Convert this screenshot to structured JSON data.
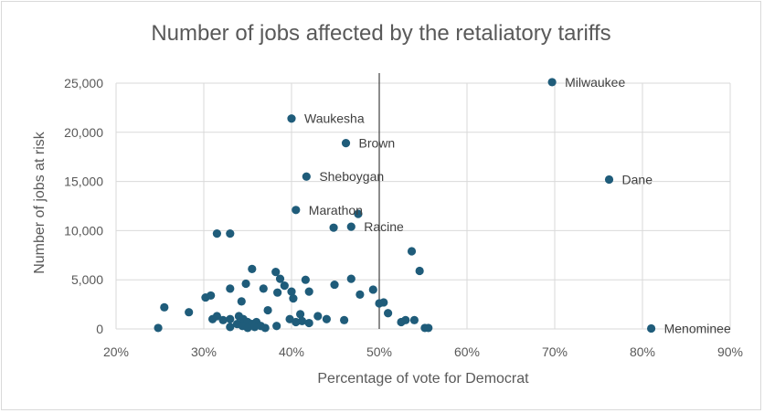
{
  "chart_data": {
    "type": "scatter",
    "title": "Number of jobs affected by the retaliatory tariffs",
    "xlabel": "Percentage of vote for Democrat",
    "ylabel": "Number of jobs at risk",
    "xlim": [
      0.2,
      0.9
    ],
    "ylim": [
      0,
      25000
    ],
    "x_ticks": [
      0.2,
      0.3,
      0.4,
      0.5,
      0.6,
      0.7,
      0.8,
      0.9
    ],
    "x_tick_labels": [
      "20%",
      "30%",
      "40%",
      "50%",
      "60%",
      "70%",
      "80%",
      "90%"
    ],
    "y_ticks": [
      0,
      5000,
      10000,
      15000,
      20000,
      25000
    ],
    "y_tick_labels": [
      "0",
      "5,000",
      "10,000",
      "15,000",
      "20,000",
      "25,000"
    ],
    "grid": true,
    "reference_line_x": 0.5,
    "marker_color": "#1f5c7a",
    "labels": [
      {
        "text": "Milwaukee",
        "x": 0.697,
        "y": 25100
      },
      {
        "text": "Waukesha",
        "x": 0.4,
        "y": 21400
      },
      {
        "text": "Brown",
        "x": 0.462,
        "y": 18900
      },
      {
        "text": "Sheboygan",
        "x": 0.417,
        "y": 15500
      },
      {
        "text": "Dane",
        "x": 0.762,
        "y": 15200
      },
      {
        "text": "Marathon",
        "x": 0.405,
        "y": 12100
      },
      {
        "text": "Racine",
        "x": 0.468,
        "y": 10400
      },
      {
        "text": "Menominee",
        "x": 0.81,
        "y": 50
      }
    ],
    "points": [
      [
        0.697,
        25100
      ],
      [
        0.4,
        21400
      ],
      [
        0.462,
        18900
      ],
      [
        0.417,
        15500
      ],
      [
        0.762,
        15200
      ],
      [
        0.405,
        12100
      ],
      [
        0.476,
        11700
      ],
      [
        0.468,
        10400
      ],
      [
        0.448,
        10300
      ],
      [
        0.315,
        9700
      ],
      [
        0.33,
        9700
      ],
      [
        0.537,
        7900
      ],
      [
        0.81,
        50
      ],
      [
        0.355,
        6100
      ],
      [
        0.382,
        5800
      ],
      [
        0.387,
        5100
      ],
      [
        0.416,
        5000
      ],
      [
        0.468,
        5100
      ],
      [
        0.546,
        5900
      ],
      [
        0.348,
        4600
      ],
      [
        0.33,
        4100
      ],
      [
        0.368,
        4100
      ],
      [
        0.392,
        4400
      ],
      [
        0.449,
        4500
      ],
      [
        0.493,
        4000
      ],
      [
        0.384,
        3700
      ],
      [
        0.4,
        3800
      ],
      [
        0.42,
        3800
      ],
      [
        0.478,
        3500
      ],
      [
        0.302,
        3200
      ],
      [
        0.308,
        3400
      ],
      [
        0.402,
        3100
      ],
      [
        0.5,
        2600
      ],
      [
        0.505,
        2700
      ],
      [
        0.255,
        2200
      ],
      [
        0.343,
        2800
      ],
      [
        0.283,
        1700
      ],
      [
        0.373,
        1900
      ],
      [
        0.41,
        1500
      ],
      [
        0.43,
        1300
      ],
      [
        0.44,
        1000
      ],
      [
        0.51,
        1600
      ],
      [
        0.53,
        900
      ],
      [
        0.54,
        900
      ],
      [
        0.46,
        900
      ],
      [
        0.31,
        1000
      ],
      [
        0.315,
        1300
      ],
      [
        0.322,
        900
      ],
      [
        0.33,
        1000
      ],
      [
        0.34,
        1300
      ],
      [
        0.345,
        1000
      ],
      [
        0.35,
        700
      ],
      [
        0.355,
        500
      ],
      [
        0.36,
        700
      ],
      [
        0.365,
        300
      ],
      [
        0.37,
        100
      ],
      [
        0.33,
        200
      ],
      [
        0.338,
        500
      ],
      [
        0.344,
        300
      ],
      [
        0.35,
        100
      ],
      [
        0.358,
        200
      ],
      [
        0.383,
        300
      ],
      [
        0.398,
        1000
      ],
      [
        0.405,
        700
      ],
      [
        0.412,
        800
      ],
      [
        0.42,
        600
      ],
      [
        0.248,
        100
      ],
      [
        0.525,
        700
      ],
      [
        0.552,
        100
      ],
      [
        0.556,
        100
      ]
    ]
  }
}
